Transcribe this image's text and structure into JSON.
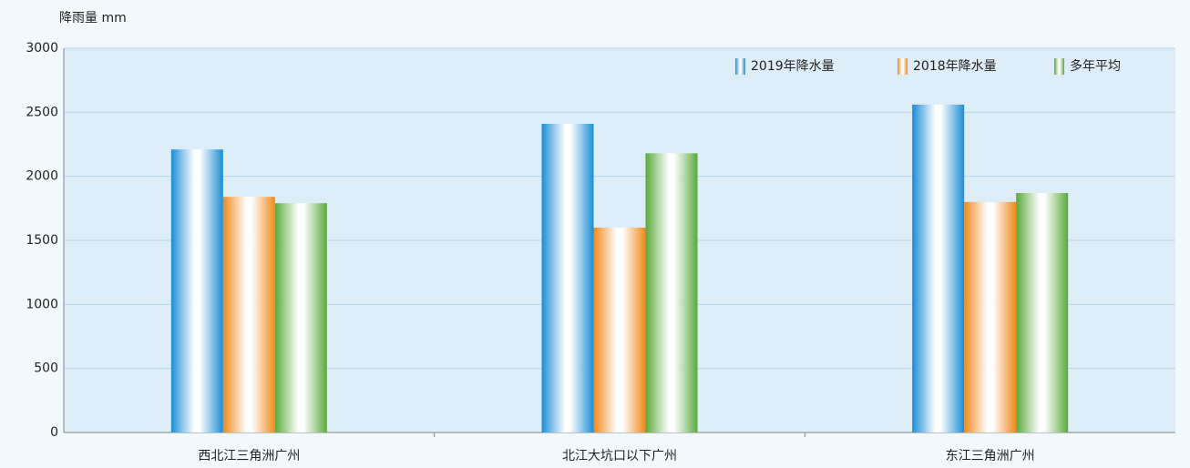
{
  "chart_data": {
    "type": "bar",
    "y_label": "降雨量 mm",
    "categories": [
      "西北江三角洲广州",
      "北江大坑口以下广州",
      "东江三角洲广州"
    ],
    "series": [
      {
        "name": "2019年降水量",
        "color": "#1a8dd6",
        "values": [
          2210,
          2410,
          2560
        ]
      },
      {
        "name": "2018年降水量",
        "color": "#f0891a",
        "values": [
          1840,
          1600,
          1800
        ]
      },
      {
        "name": "多年平均",
        "color": "#5aa93a",
        "values": [
          1790,
          2180,
          1870
        ]
      }
    ],
    "ylim": [
      0,
      3000
    ],
    "yticks": [
      0,
      500,
      1000,
      1500,
      2000,
      2500,
      3000
    ],
    "grid": true,
    "legend": "top-right"
  }
}
